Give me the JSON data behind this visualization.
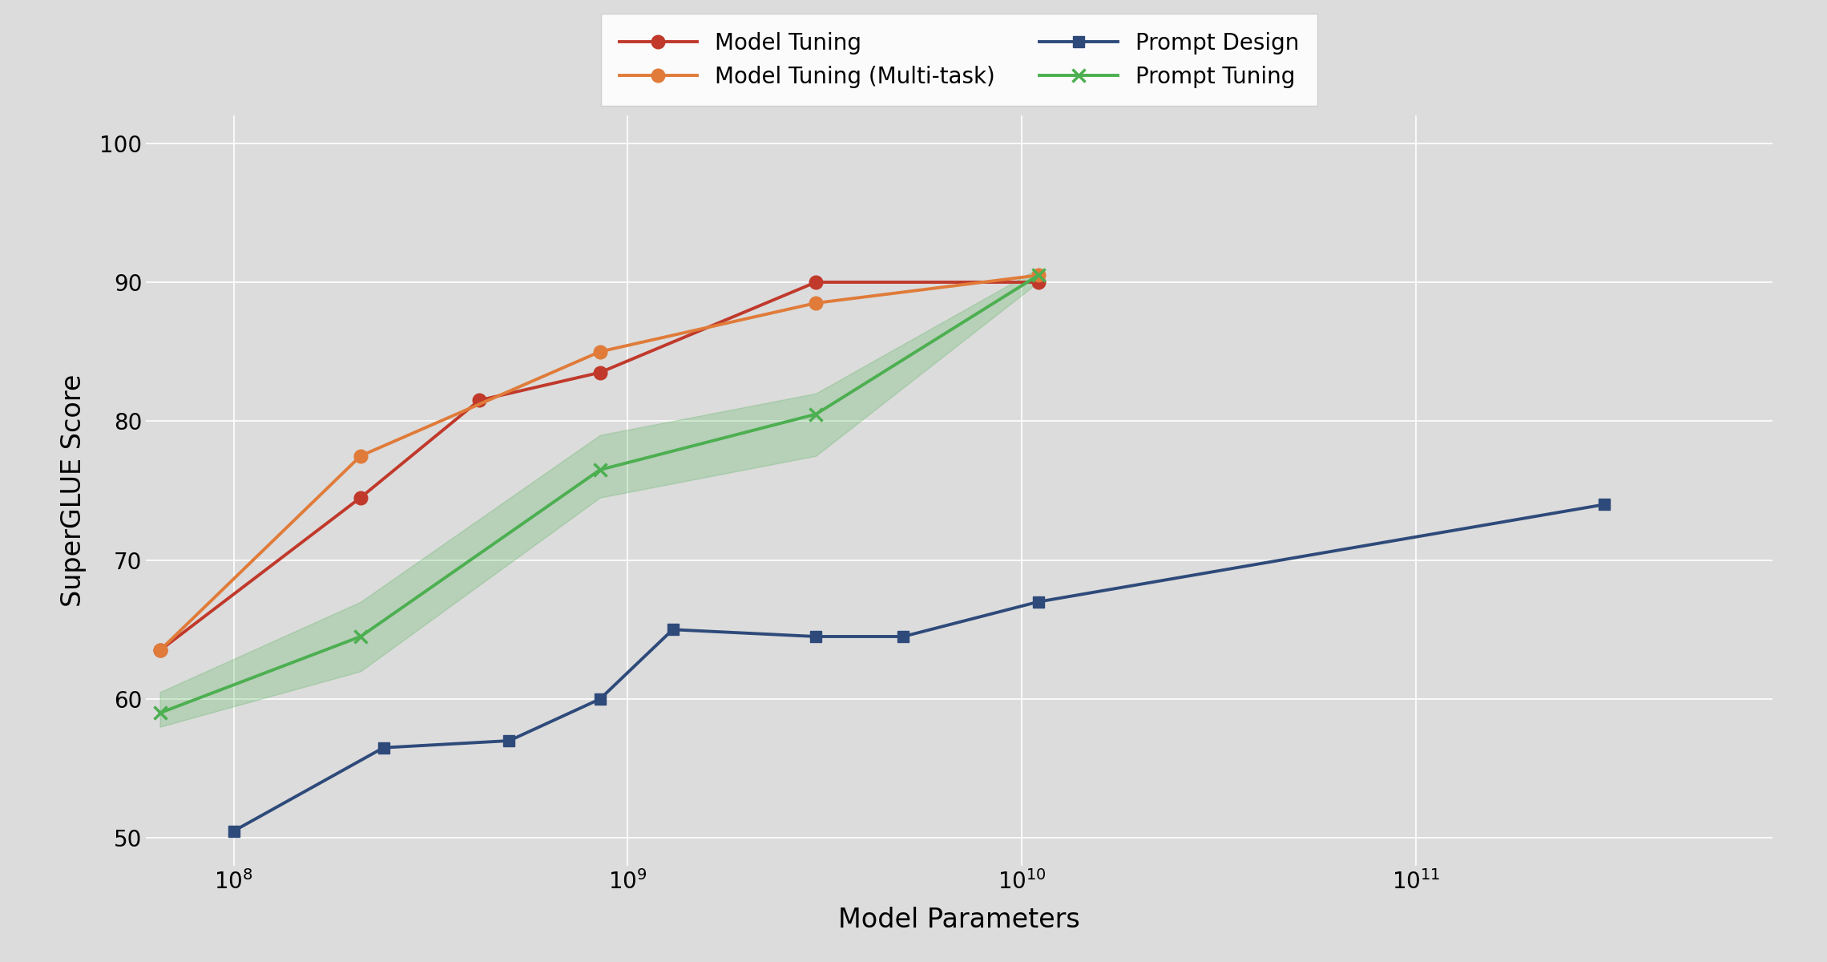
{
  "title": "",
  "xlabel": "Model Parameters",
  "ylabel": "SuperGLUE Score",
  "xlim_log": [
    60000000.0,
    800000000000.0
  ],
  "ylim": [
    48,
    102
  ],
  "yticks": [
    50,
    60,
    70,
    80,
    90,
    100
  ],
  "background_color": "#DCDCDC",
  "figure_background": "#DCDCDC",
  "model_tuning": {
    "label": "Model Tuning",
    "color": "#C0392B",
    "marker": "o",
    "markersize": 12,
    "linewidth": 2.8,
    "x": [
      65000000.0,
      210000000.0,
      420000000.0,
      850000000.0,
      3000000000.0,
      11000000000.0
    ],
    "y": [
      63.5,
      74.5,
      81.5,
      83.5,
      90.0,
      90.0
    ]
  },
  "model_tuning_multi": {
    "label": "Model Tuning (Multi-task)",
    "color": "#E07B39",
    "marker": "o",
    "markersize": 12,
    "linewidth": 2.8,
    "x": [
      65000000.0,
      210000000.0,
      850000000.0,
      3000000000.0,
      11000000000.0
    ],
    "y": [
      63.5,
      77.5,
      85.0,
      88.5,
      90.5
    ]
  },
  "prompt_design": {
    "label": "Prompt Design",
    "color": "#2E4A7A",
    "marker": "s",
    "markersize": 10,
    "linewidth": 2.8,
    "x": [
      100000000.0,
      240000000.0,
      500000000.0,
      850000000.0,
      1300000000.0,
      3000000000.0,
      5000000000.0,
      11000000000.0,
      300000000000.0
    ],
    "y": [
      50.5,
      56.5,
      57.0,
      60.0,
      65.0,
      64.5,
      64.5,
      67.0,
      74.0
    ]
  },
  "prompt_tuning": {
    "label": "Prompt Tuning",
    "color": "#4CAF50",
    "marker": "x",
    "markersize": 12,
    "markeredgewidth": 2.5,
    "linewidth": 2.8,
    "x": [
      65000000.0,
      210000000.0,
      850000000.0,
      3000000000.0,
      11000000000.0
    ],
    "y": [
      59.0,
      64.5,
      76.5,
      80.5,
      90.5
    ],
    "y_low": [
      58.0,
      62.0,
      74.5,
      77.5,
      90.0
    ],
    "y_high": [
      60.5,
      67.0,
      79.0,
      82.0,
      91.0
    ]
  },
  "legend_fontsize": 20,
  "axis_label_fontsize": 24,
  "tick_fontsize": 20
}
